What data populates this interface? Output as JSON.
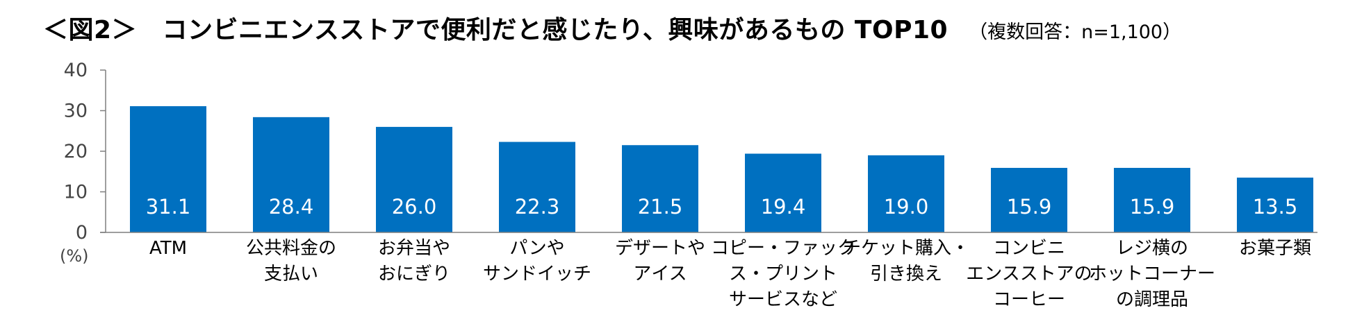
{
  "chart_data": {
    "type": "bar",
    "title": "＜図2＞　コンビニエンスストアで便利だと感じたり、興味があるもの TOP10",
    "subtitle": "（複数回答：n=1,100）",
    "ylabel": "(%)",
    "ylim": [
      0,
      40
    ],
    "yticks": [
      "0",
      "10",
      "20",
      "30",
      "40"
    ],
    "bar_color": "#0070C0",
    "categories": [
      [
        "ATM"
      ],
      [
        "公共料金の",
        "支払い"
      ],
      [
        "お弁当や",
        "おにぎり"
      ],
      [
        "パンや",
        "サンドイッチ"
      ],
      [
        "デザートや",
        "アイス"
      ],
      [
        "コピー・ファック",
        "ス・プリント",
        "サービスなど"
      ],
      [
        "チケット購入・",
        "引き換え"
      ],
      [
        "コンビニ",
        "エンスストアの",
        "コーヒー"
      ],
      [
        "レジ横の",
        "ホットコーナー",
        "の調理品"
      ],
      [
        "お菓子類"
      ]
    ],
    "values": [
      31.1,
      28.4,
      26.0,
      22.3,
      21.5,
      19.4,
      19.0,
      15.9,
      15.9,
      13.5
    ],
    "data_labels": [
      "31.1",
      "28.4",
      "26.0",
      "22.3",
      "21.5",
      "19.4",
      "19.0",
      "15.9",
      "15.9",
      "13.5"
    ],
    "grid": false,
    "legend": "none"
  }
}
